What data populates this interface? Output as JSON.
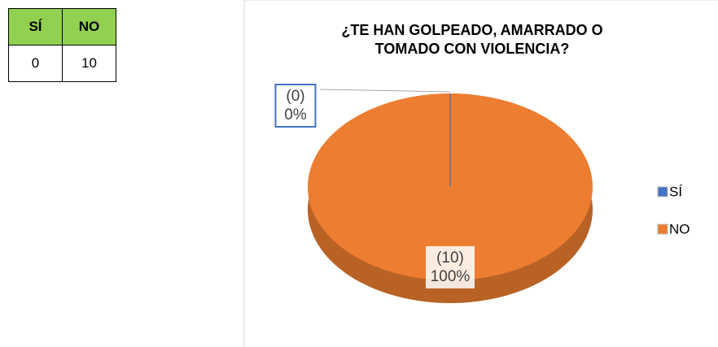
{
  "table": {
    "header": [
      "SÍ",
      "NO"
    ],
    "rows": [
      [
        "0",
        "10"
      ]
    ]
  },
  "chart_data": {
    "type": "pie",
    "title": [
      "¿TE HAN GOLPEADO, AMARRADO O",
      "TOMADO CON VIOLENCIA?"
    ],
    "categories": [
      "SÍ",
      "NO"
    ],
    "values": [
      0,
      10
    ],
    "value_labels": [
      [
        "(0)",
        "0%"
      ],
      [
        "(10)",
        "100%"
      ]
    ],
    "colors": [
      "#4472c4",
      "#ed7d31"
    ],
    "legend": "right"
  }
}
